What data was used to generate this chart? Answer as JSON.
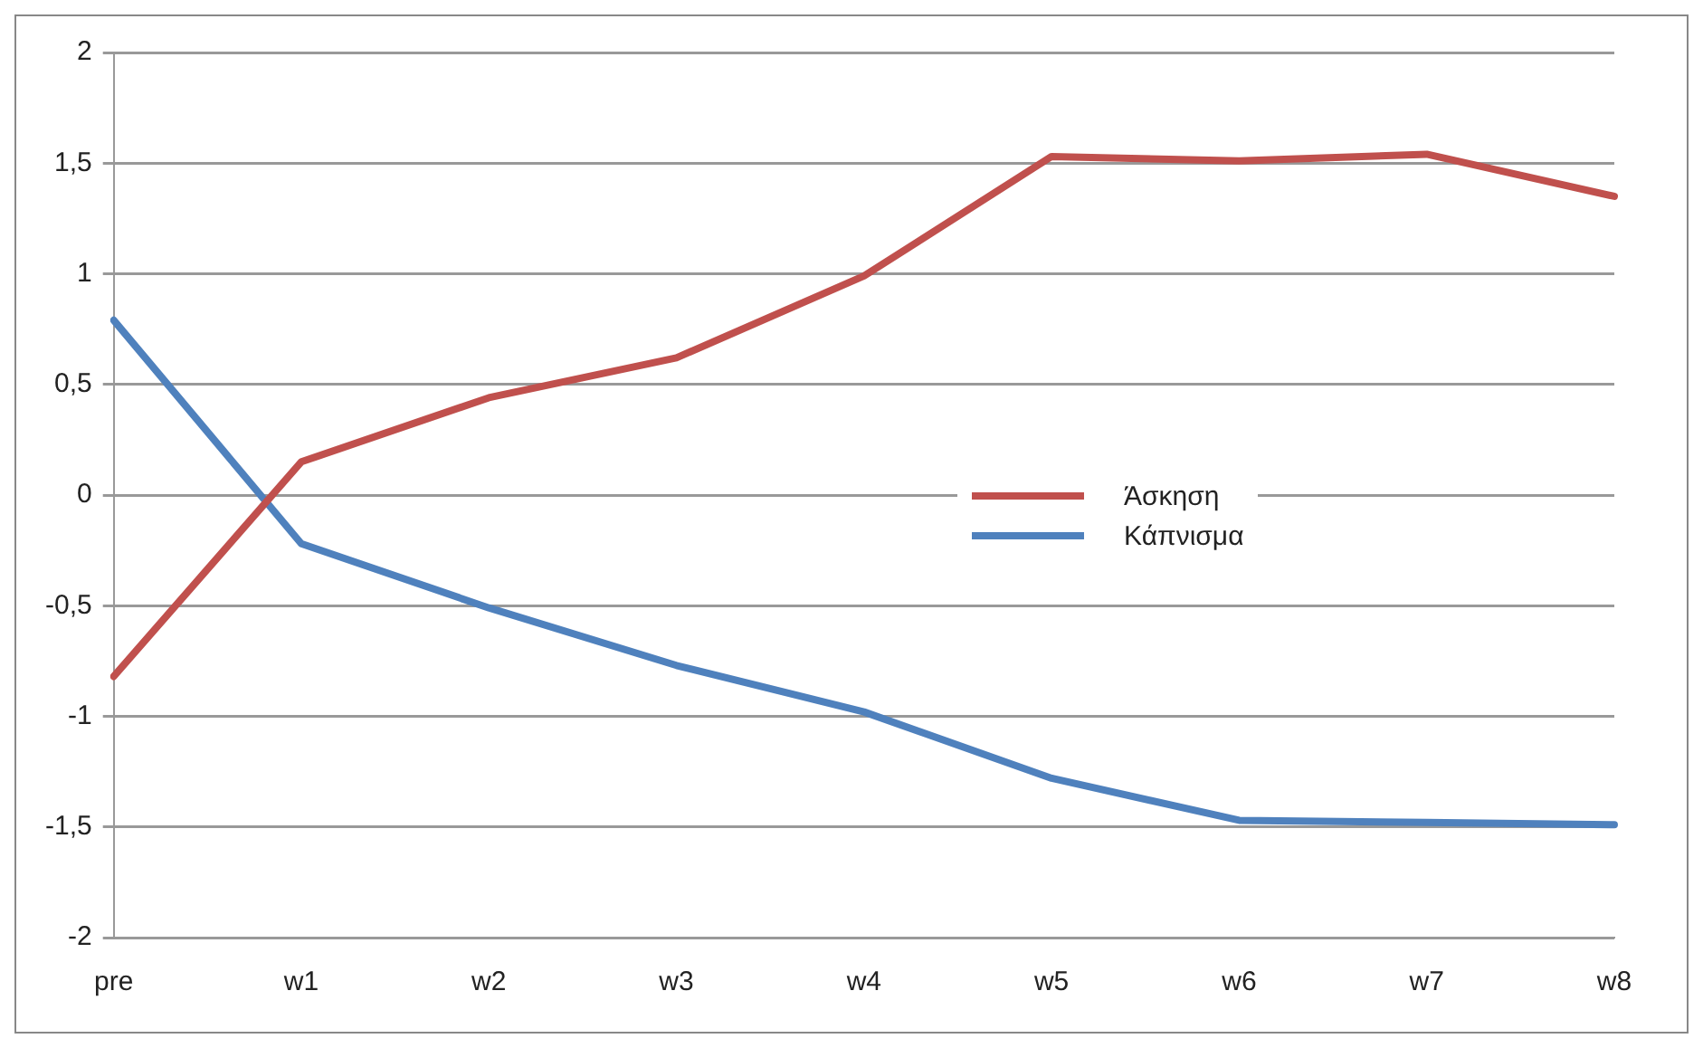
{
  "chart_data": {
    "type": "line",
    "categories": [
      "pre",
      "w1",
      "w2",
      "w3",
      "w4",
      "w5",
      "w6",
      "w7",
      "w8"
    ],
    "series": [
      {
        "name": "Άσκηση",
        "color": "#c0504d",
        "values": [
          -0.82,
          0.15,
          0.44,
          0.62,
          0.99,
          1.53,
          1.51,
          1.54,
          1.35
        ]
      },
      {
        "name": "Κάπνισμα",
        "color": "#4f81bd",
        "values": [
          0.79,
          -0.22,
          -0.51,
          -0.77,
          -0.98,
          -1.28,
          -1.47,
          -1.48,
          -1.49
        ]
      }
    ],
    "ylim": [
      -2,
      2
    ],
    "yticks": [
      {
        "value": -2,
        "label": "-2"
      },
      {
        "value": -1.5,
        "label": "-1,5"
      },
      {
        "value": -1,
        "label": "-1"
      },
      {
        "value": -0.5,
        "label": "-0,5"
      },
      {
        "value": 0,
        "label": "0"
      },
      {
        "value": 0.5,
        "label": "0,5"
      },
      {
        "value": 1,
        "label": "1"
      },
      {
        "value": 1.5,
        "label": "1,5"
      },
      {
        "value": 2,
        "label": "2"
      }
    ],
    "grid": "y",
    "legend": "right",
    "marker": "none",
    "line_style": "solid"
  }
}
